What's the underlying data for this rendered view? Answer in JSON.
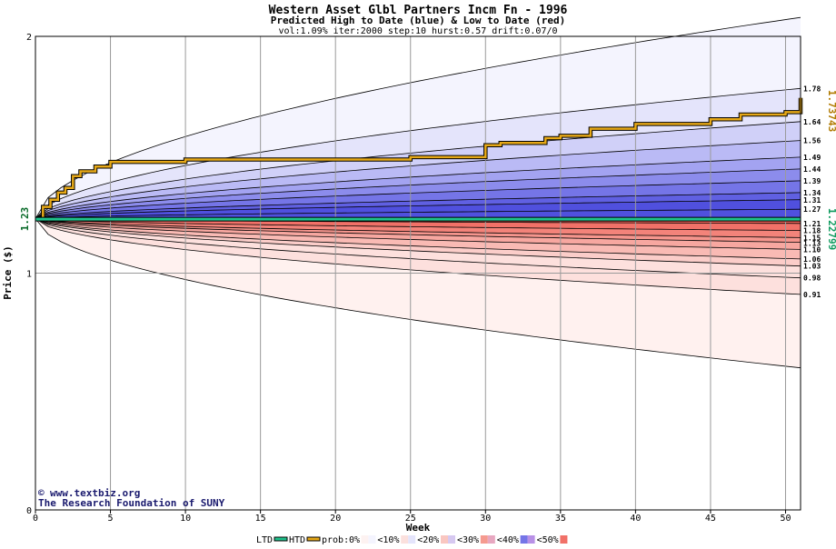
{
  "chart_data": {
    "type": "area",
    "title": "Western Asset Glbl Partners Incm Fn - 1996",
    "subtitle": "Predicted High to Date (blue) &  Low to Date (red)",
    "params": "vol:1.09% iter:2000 step:10 hurst:0.57 drift:0.07/0",
    "xlabel": "Week",
    "ylabel": "Price ($)",
    "xlim": [
      0,
      51
    ],
    "ylim": [
      0,
      2
    ],
    "x_ticks": [
      0,
      5,
      10,
      15,
      20,
      25,
      30,
      35,
      40,
      45,
      50
    ],
    "y_ticks": [
      0,
      1,
      2
    ],
    "grid": true,
    "start_price": 1.23,
    "start_price_label": "1.23",
    "ltd_value_label": "1.22799",
    "htd_value_label": "1.73743",
    "ltd_value": 1.22799,
    "htd_value": 1.73743,
    "high_percentile_end_labels": [
      "1.78",
      "1.64",
      "1.56",
      "1.49",
      "1.44",
      "1.39",
      "1.34",
      "1.31",
      "1.27"
    ],
    "high_percentile_end_values": [
      1.78,
      1.64,
      1.56,
      1.49,
      1.44,
      1.39,
      1.34,
      1.31,
      1.27
    ],
    "low_percentile_end_labels": [
      "1.21",
      "1.18",
      "1.15",
      "1.13",
      "1.10",
      "1.06",
      "1.03",
      "0.98",
      "0.91"
    ],
    "low_percentile_end_values": [
      1.21,
      1.18,
      1.15,
      1.13,
      1.1,
      1.06,
      1.03,
      0.98,
      0.91
    ],
    "outer_high_end": 1.78,
    "outer_low_end": 0.6,
    "htd_path": {
      "x": [
        0,
        0.5,
        1,
        1.5,
        2,
        2.5,
        3,
        4,
        5,
        10,
        15,
        20,
        25,
        30,
        31,
        34,
        35,
        37,
        40,
        45,
        47,
        50,
        51
      ],
      "y": [
        1.23,
        1.28,
        1.31,
        1.34,
        1.36,
        1.41,
        1.43,
        1.45,
        1.47,
        1.48,
        1.48,
        1.48,
        1.49,
        1.54,
        1.55,
        1.57,
        1.58,
        1.61,
        1.63,
        1.65,
        1.67,
        1.68,
        1.74
      ]
    },
    "ltd_path": {
      "x": [
        0,
        51
      ],
      "y": [
        1.228,
        1.228
      ]
    }
  },
  "legend": {
    "ltd_label": "LTD",
    "htd_label": "HTD",
    "prob_label": "prob:",
    "items": [
      "0%",
      "<10%",
      "<20%",
      "<30%",
      "<40%",
      "<50%"
    ]
  },
  "credits": {
    "site": "www.textbiz.org",
    "org": "The Research Foundation of SUNY"
  },
  "colors": {
    "htd": "#e6a817",
    "ltd": "#1fc28c",
    "high_shades": [
      "#f4f4fe",
      "#e4e4fb",
      "#d0d0f8",
      "#babaf5",
      "#a3a3f1",
      "#8c8cec",
      "#7575e7",
      "#6060e2",
      "#5050de"
    ],
    "low_shades": [
      "#fff1ef",
      "#fde0dd",
      "#fbcdc9",
      "#f9bab4",
      "#f7a7a0",
      "#f5958d",
      "#f3837a",
      "#f17168",
      "#ef6259"
    ]
  }
}
